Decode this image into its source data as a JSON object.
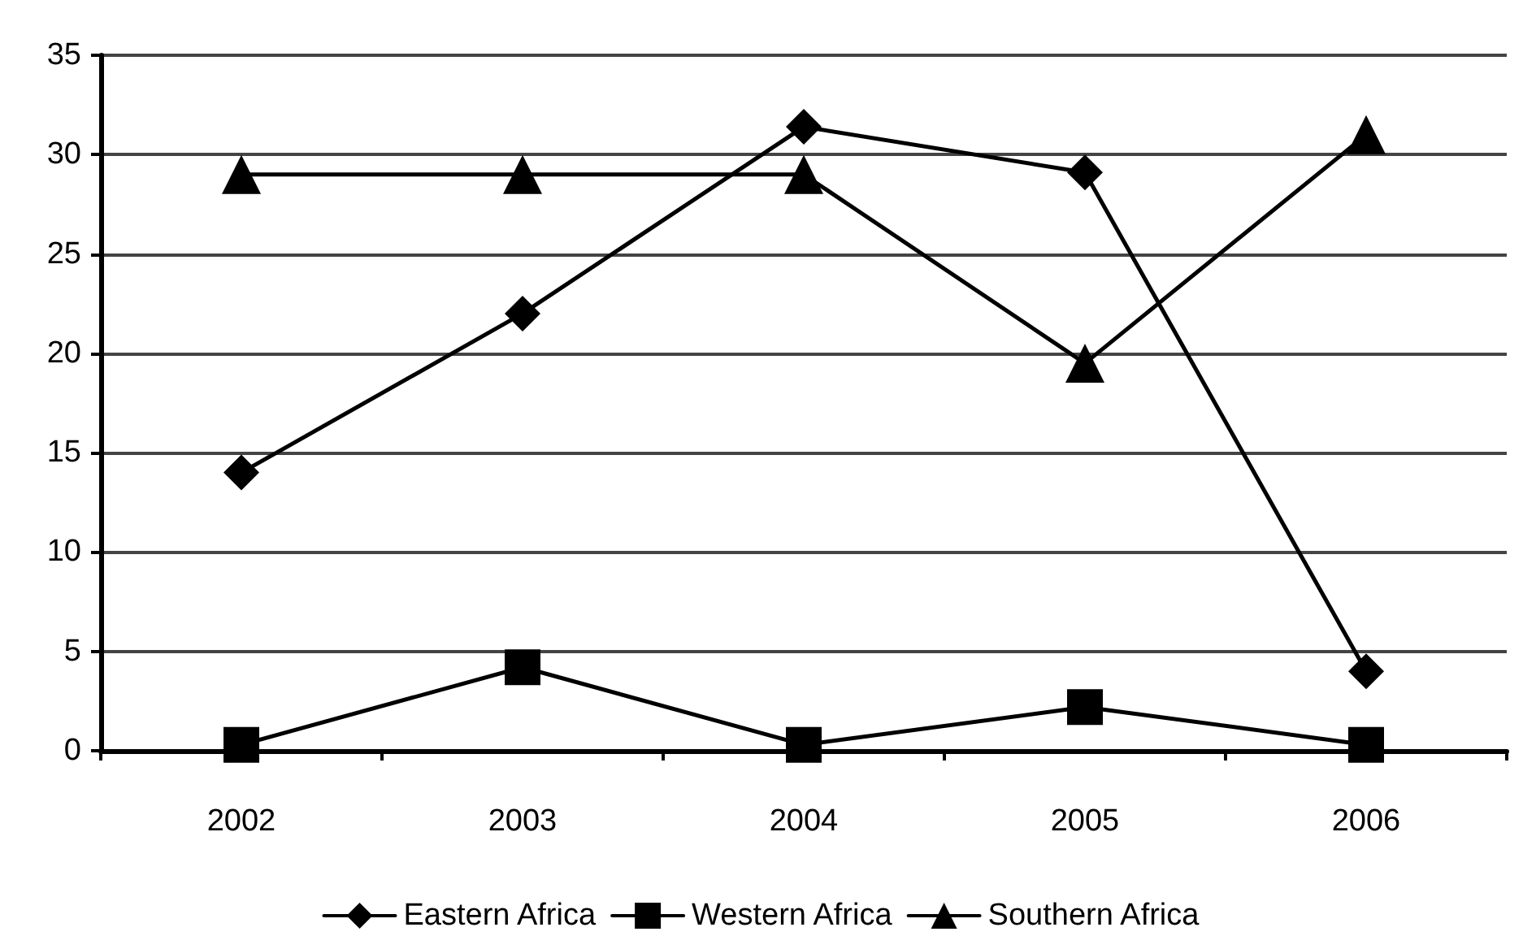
{
  "chart_data": {
    "type": "line",
    "categories": [
      "2002",
      "2003",
      "2004",
      "2005",
      "2006"
    ],
    "series": [
      {
        "name": "Eastern Africa",
        "color": "#000000",
        "marker": "diamond",
        "values": [
          14,
          22,
          31.4,
          29.1,
          4
        ]
      },
      {
        "name": "Western Africa",
        "color": "#000000",
        "marker": "square",
        "values": [
          0.3,
          4.2,
          0.3,
          2.2,
          0.3
        ]
      },
      {
        "name": "Southern Africa",
        "color": "#000000",
        "marker": "triangle",
        "values": [
          29,
          29,
          29,
          19.5,
          31
        ]
      }
    ],
    "ylim": [
      0,
      35
    ],
    "yticks": [
      0,
      5,
      10,
      15,
      20,
      25,
      30,
      35
    ],
    "grid": "y",
    "legend": "bottom",
    "line_style": "solid"
  }
}
